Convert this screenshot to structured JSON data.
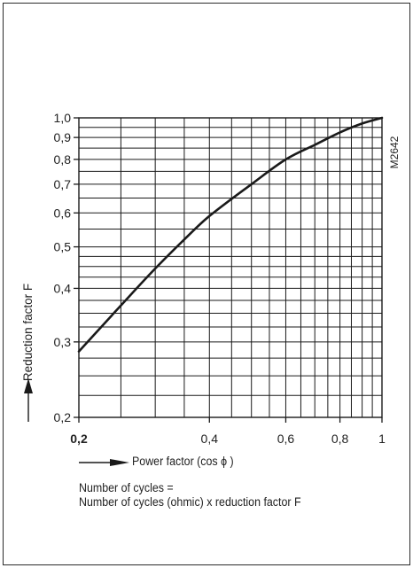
{
  "chart_data": {
    "type": "line",
    "x_scale": "log",
    "y_scale": "log",
    "xlim": [
      0.2,
      1
    ],
    "ylim": [
      0.2,
      1.0
    ],
    "x_ticks": [
      0.2,
      0.4,
      0.6,
      0.8,
      1
    ],
    "x_tick_labels": [
      "0,2",
      "0,4",
      "0,6",
      "0,8",
      "1"
    ],
    "y_ticks": [
      0.2,
      0.3,
      0.4,
      0.5,
      0.6,
      0.7,
      0.8,
      0.9,
      1.0
    ],
    "y_tick_labels": [
      "0,2",
      "0,3",
      "0,4",
      "0,5",
      "0,6",
      "0,7",
      "0,8",
      "0,9",
      "1,0"
    ],
    "grid": true,
    "xlabel": "Power factor (cos ϕ )",
    "ylabel": "Reduction factor F",
    "figure_id": "M2642",
    "x": [
      0.2,
      0.25,
      0.3,
      0.35,
      0.4,
      0.5,
      0.6,
      0.7,
      0.8,
      0.9,
      1.0
    ],
    "y": [
      0.285,
      0.365,
      0.445,
      0.52,
      0.59,
      0.7,
      0.8,
      0.865,
      0.925,
      0.97,
      1.0
    ]
  },
  "note": {
    "line1": "Number of cycles =",
    "line2": "Number of cycles (ohmic) x reduction factor F"
  },
  "colors": {
    "ink": "#1a1a1a",
    "grid": "#1a1a1a",
    "background": "#ffffff"
  }
}
